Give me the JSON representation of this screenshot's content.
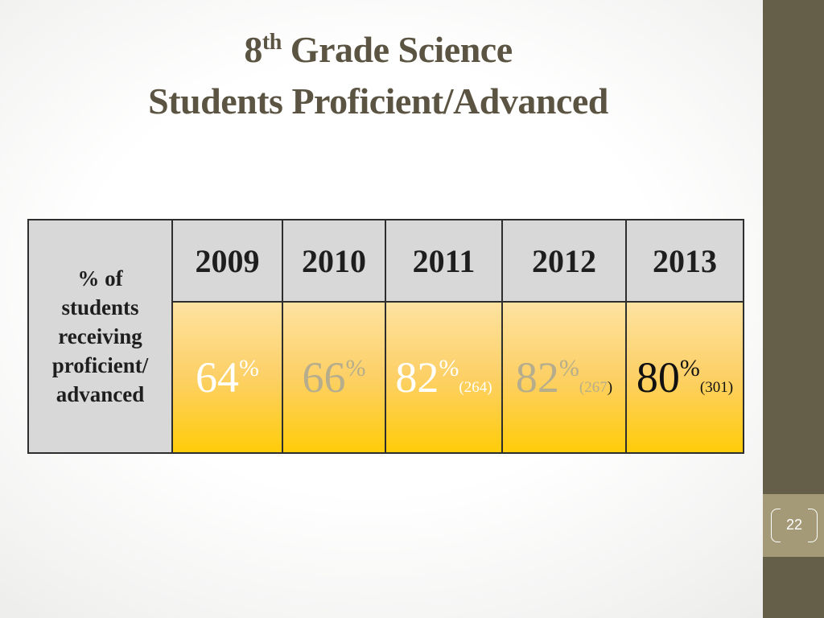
{
  "slide": {
    "title_line1_number": "8",
    "title_line1_superscript": "th",
    "title_line1_rest": " Grade Science",
    "title_line2": "Students Proficient/Advanced",
    "page_number": "22"
  },
  "table": {
    "row_header": "% of students receiving proficient/ advanced",
    "years": [
      "2009",
      "2010",
      "2011",
      "2012",
      "2013"
    ],
    "cells": [
      {
        "value": "64",
        "percent": "%",
        "count": "",
        "color": "#ffffff"
      },
      {
        "value": "66",
        "percent": "%",
        "count": "",
        "color": "#b6ad8c"
      },
      {
        "value": "82",
        "percent": "%",
        "count": "(264)",
        "color": "#ffffff"
      },
      {
        "value": "82",
        "percent": "%",
        "count": "(267",
        "count_close": ")",
        "color": "#b6ad8c"
      },
      {
        "value": "80",
        "percent": "%",
        "count": "(301)",
        "color": "#111111"
      }
    ]
  },
  "colors": {
    "sidebar": "#655e48",
    "page_box": "#a49a77",
    "title": "#5b5442"
  }
}
